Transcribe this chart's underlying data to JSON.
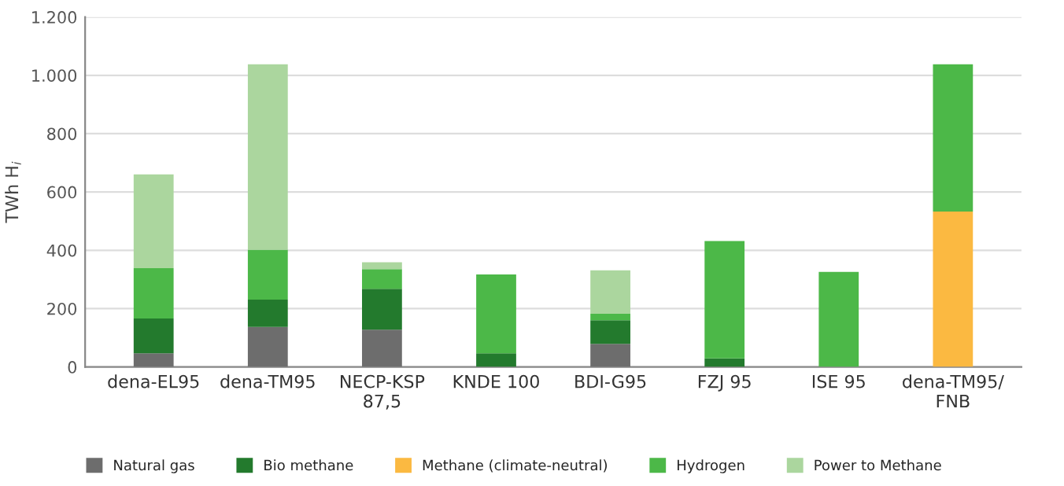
{
  "chart_data": {
    "type": "bar",
    "stacked": true,
    "ylabel": "TWh H$_{i}$",
    "categories": [
      "dena-EL95",
      "dena-TM95",
      "NECP-KSP\n87,5",
      "KNDE 100",
      "BDI-G95",
      "FZJ 95",
      "ISE 95",
      "dena-TM95/\nFNB"
    ],
    "series": [
      {
        "name": "Natural gas",
        "color": "#6d6d6d",
        "values": [
          47,
          137,
          128,
          0,
          79,
          0,
          0,
          0
        ]
      },
      {
        "name": "Bio methane",
        "color": "#237a2d",
        "values": [
          119,
          94,
          140,
          47,
          81,
          29,
          0,
          0
        ]
      },
      {
        "name": "Methane (climate-neutral)",
        "color": "#fbb941",
        "values": [
          0,
          0,
          0,
          0,
          0,
          0,
          0,
          533
        ]
      },
      {
        "name": "Hydrogen",
        "color": "#4cb848",
        "values": [
          173,
          171,
          67,
          270,
          22,
          403,
          326,
          505
        ]
      },
      {
        "name": "Power to Methane",
        "color": "#abd69e",
        "values": [
          321,
          636,
          24,
          0,
          149,
          0,
          0,
          0
        ]
      }
    ],
    "ylim": [
      0,
      1200
    ],
    "yticks": [
      0,
      200,
      400,
      600,
      800,
      {
        "value": 1000,
        "label": "1.000"
      },
      {
        "value": 1200,
        "label": "1.200"
      }
    ],
    "grid": "y",
    "legend": "bottom"
  }
}
